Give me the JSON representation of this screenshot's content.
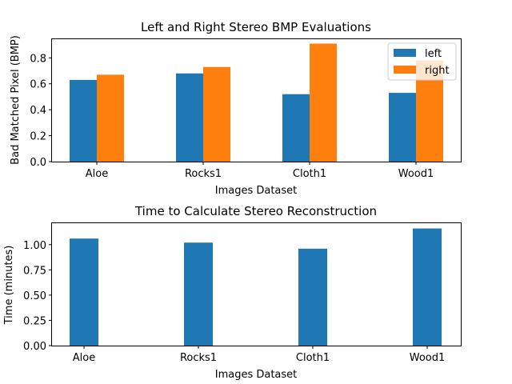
{
  "chart_data": [
    {
      "type": "bar",
      "title": "Left and Right Stereo BMP Evaluations",
      "xlabel": "Images Dataset",
      "ylabel": "Bad Matched Pixel (BMP)",
      "categories": [
        "Aloe",
        "Rocks1",
        "Cloth1",
        "Wood1"
      ],
      "series": [
        {
          "name": "left",
          "values": [
            0.63,
            0.68,
            0.52,
            0.53
          ],
          "color": "#1f77b4"
        },
        {
          "name": "right",
          "values": [
            0.67,
            0.73,
            0.91,
            0.78
          ],
          "color": "#ff7f0e"
        }
      ],
      "ylim": [
        0,
        0.95
      ],
      "yticks": [
        0.0,
        0.2,
        0.4,
        0.6,
        0.8
      ],
      "ytick_labels": [
        "0.0",
        "0.2",
        "0.4",
        "0.6",
        "0.8"
      ],
      "grid": false,
      "legend": "top-right"
    },
    {
      "type": "bar",
      "title": "Time to Calculate Stereo Reconstruction",
      "xlabel": "Images Dataset",
      "ylabel": "Time (minutes)",
      "categories": [
        "Aloe",
        "Rocks1",
        "Cloth1",
        "Wood1"
      ],
      "series": [
        {
          "values": [
            1.06,
            1.02,
            0.96,
            1.16
          ],
          "color": "#1f77b4"
        }
      ],
      "ylim": [
        0,
        1.22
      ],
      "yticks": [
        0.0,
        0.25,
        0.5,
        0.75,
        1.0
      ],
      "ytick_labels": [
        "0.00",
        "0.25",
        "0.50",
        "0.75",
        "1.00"
      ],
      "grid": false
    }
  ]
}
